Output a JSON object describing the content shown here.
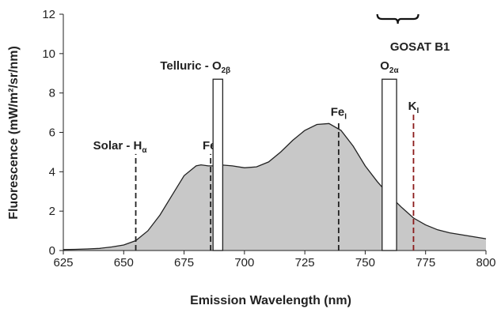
{
  "chart_data": {
    "type": "area",
    "xlabel": "Emission Wavelength (nm)",
    "ylabel": "Fluorescence (mW/m²/sr/nm)",
    "xlim": [
      625,
      800
    ],
    "ylim": [
      0,
      12
    ],
    "xticks": [
      625,
      650,
      675,
      700,
      725,
      750,
      775,
      800
    ],
    "yticks": [
      0,
      2,
      4,
      6,
      8,
      10,
      12
    ],
    "series": [
      {
        "x": [
          625,
          630,
          635,
          640,
          645,
          650,
          655,
          660,
          665,
          670,
          675,
          680,
          682,
          685,
          688,
          690,
          695,
          700,
          705,
          710,
          715,
          720,
          725,
          730,
          735,
          740,
          745,
          750,
          755,
          760,
          765,
          770,
          775,
          780,
          785,
          790,
          795,
          800
        ],
        "y": [
          0.05,
          0.06,
          0.08,
          0.11,
          0.18,
          0.28,
          0.5,
          1.0,
          1.8,
          2.8,
          3.8,
          4.3,
          4.35,
          4.3,
          4.3,
          4.35,
          4.3,
          4.2,
          4.25,
          4.5,
          5.0,
          5.6,
          6.1,
          6.4,
          6.45,
          6.1,
          5.3,
          4.3,
          3.5,
          2.8,
          2.2,
          1.65,
          1.3,
          1.05,
          0.9,
          0.8,
          0.7,
          0.6
        ]
      }
    ],
    "fill_color": "#c8c8c8",
    "line_color": "#222222",
    "dashed_lines": [
      {
        "label": "H",
        "sub": "α",
        "prefix": "Solar - ",
        "x": 655,
        "top": 4.9,
        "color": "#222222"
      },
      {
        "label": "Fe",
        "sub": "I",
        "prefix": "",
        "x": 686,
        "top": 4.9,
        "color": "#222222"
      },
      {
        "label": "Fe",
        "sub": "I",
        "prefix": "",
        "x": 739,
        "top": 6.6,
        "color": "#222222"
      },
      {
        "label": "K",
        "sub": "I",
        "prefix": "",
        "x": 770,
        "top": 6.9,
        "color": "#8b1a1a"
      }
    ],
    "bands": [
      {
        "label": "O",
        "sub": "2β",
        "prefix": "Telluric - ",
        "x0": 687,
        "x1": 691,
        "top": 8.7
      },
      {
        "label": "O",
        "sub": "2α",
        "prefix": "",
        "x0": 757,
        "x1": 763,
        "top": 8.7
      }
    ],
    "gosat": {
      "label": "GOSAT B1",
      "x0": 755,
      "x1": 772
    }
  }
}
